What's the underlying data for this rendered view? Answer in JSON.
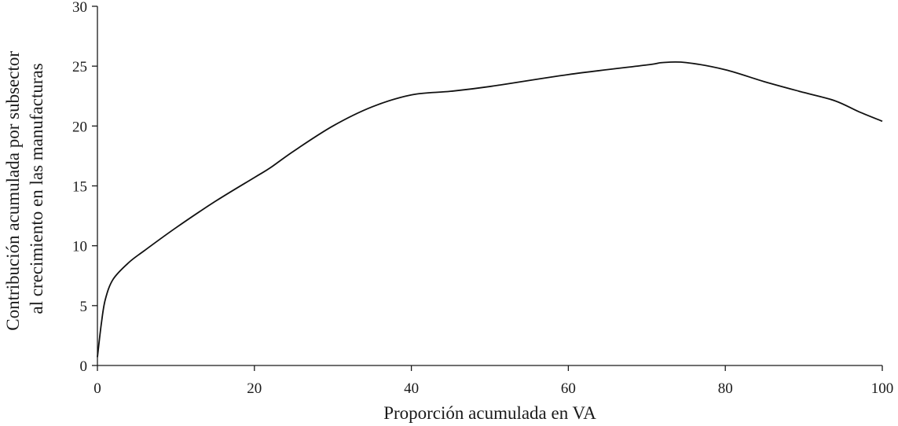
{
  "chart_data": {
    "type": "line",
    "title": "",
    "xlabel": "Proporción acumulada en VA",
    "ylabel": "Contribución acumulada por subsector al crecimiento en las manufacturas",
    "ylabel_lines": [
      "Contribución acumulada por subsector",
      "al crecimiento en las manufacturas"
    ],
    "xlim": [
      0,
      100
    ],
    "ylim": [
      0,
      30
    ],
    "xticks": [
      0,
      20,
      40,
      60,
      80,
      100
    ],
    "yticks": [
      0,
      5,
      10,
      15,
      20,
      25,
      30
    ],
    "xtick_labels": [
      "0",
      "20",
      "40",
      "60",
      "80",
      "100"
    ],
    "ytick_labels": [
      "0",
      "5",
      "10",
      "15",
      "20",
      "25",
      "30"
    ],
    "grid": false,
    "legend": "none",
    "series": [
      {
        "color": "#111111",
        "x": [
          0,
          0.5,
          1,
          2,
          4,
          6,
          10,
          15,
          20,
          22,
          25,
          30,
          35,
          40,
          45,
          50,
          60,
          70,
          72,
          75,
          80,
          85,
          90,
          94,
          97,
          100
        ],
        "y": [
          0.7,
          3.5,
          5.5,
          7.2,
          8.6,
          9.6,
          11.5,
          13.7,
          15.7,
          16.5,
          17.9,
          20.0,
          21.6,
          22.6,
          22.9,
          23.3,
          24.3,
          25.1,
          25.3,
          25.3,
          24.7,
          23.7,
          22.8,
          22.1,
          21.2,
          20.4
        ]
      }
    ]
  }
}
